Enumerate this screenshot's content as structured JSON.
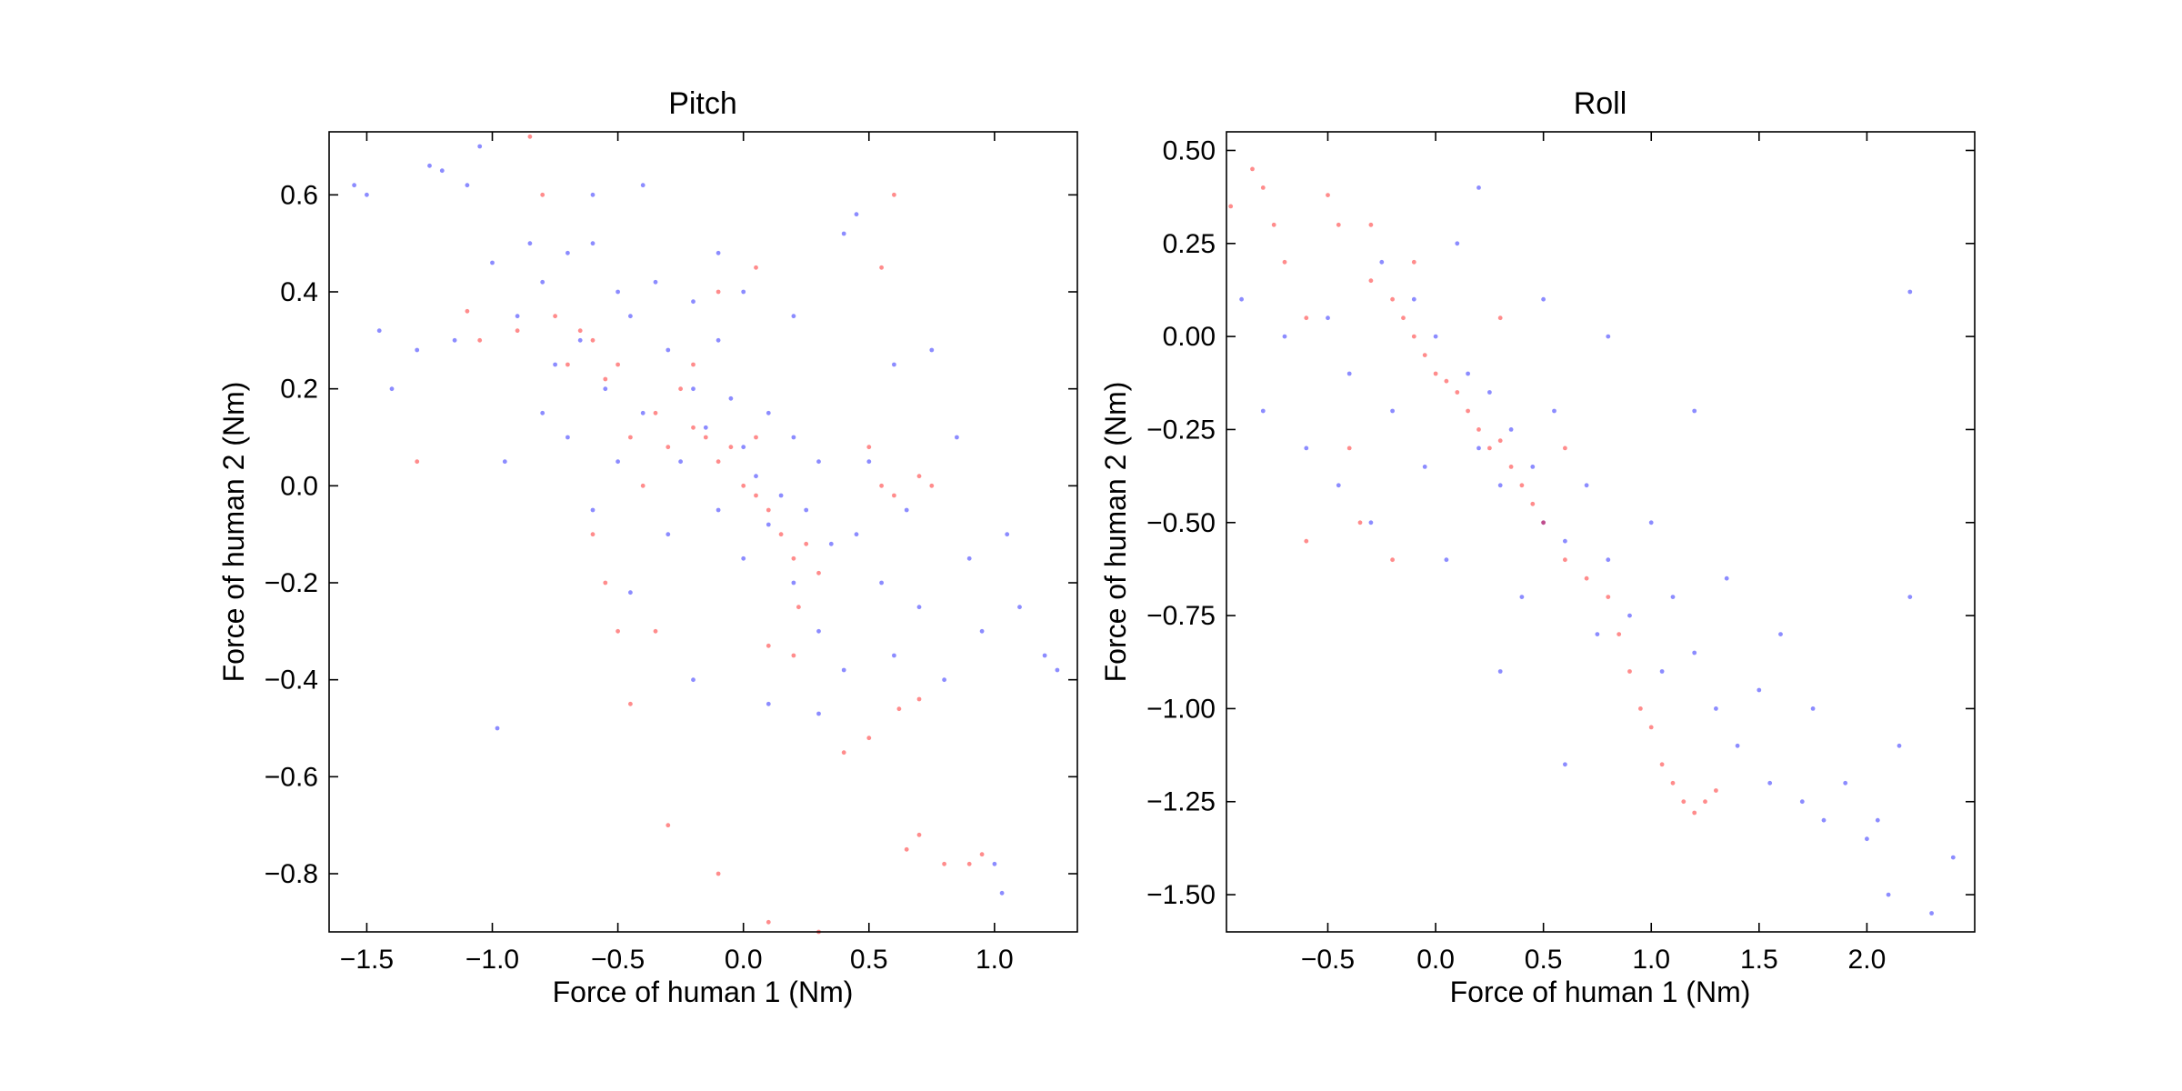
{
  "chart_data": [
    {
      "type": "scatter",
      "title": "Pitch",
      "xlabel": "Force of human 1 (Nm)",
      "ylabel": "Force of human 2 (Nm)",
      "xlim": [
        -1.65,
        1.33
      ],
      "ylim": [
        -0.92,
        0.73
      ],
      "xticks": [
        -1.5,
        -1.0,
        -0.5,
        0.0,
        0.5,
        1.0
      ],
      "xtick_labels": [
        "−1.5",
        "−1.0",
        "−0.5",
        "0.0",
        "0.5",
        "1.0"
      ],
      "yticks": [
        -0.8,
        -0.6,
        -0.4,
        -0.2,
        0.0,
        0.2,
        0.4,
        0.6
      ],
      "ytick_labels": [
        "−0.8",
        "−0.6",
        "−0.4",
        "−0.2",
        "0.0",
        "0.2",
        "0.4",
        "0.6"
      ],
      "grid": false,
      "legend": "none",
      "series": [
        {
          "color": "#0000ff",
          "points": [
            [
              -1.55,
              0.62
            ],
            [
              -1.5,
              0.6
            ],
            [
              -1.45,
              0.32
            ],
            [
              -1.4,
              0.2
            ],
            [
              -1.3,
              0.28
            ],
            [
              -1.25,
              0.66
            ],
            [
              -1.2,
              0.65
            ],
            [
              -1.15,
              0.3
            ],
            [
              -1.1,
              0.62
            ],
            [
              -1.05,
              0.7
            ],
            [
              -1.0,
              0.46
            ],
            [
              -0.98,
              -0.5
            ],
            [
              -0.95,
              0.05
            ],
            [
              -0.9,
              0.35
            ],
            [
              -0.85,
              0.5
            ],
            [
              -0.8,
              0.42
            ],
            [
              -0.75,
              0.25
            ],
            [
              -0.7,
              0.1
            ],
            [
              -0.7,
              0.48
            ],
            [
              -0.65,
              0.3
            ],
            [
              -0.6,
              0.5
            ],
            [
              -0.6,
              -0.05
            ],
            [
              -0.55,
              0.2
            ],
            [
              -0.5,
              0.4
            ],
            [
              -0.5,
              0.05
            ],
            [
              -0.45,
              0.35
            ],
            [
              -0.4,
              0.62
            ],
            [
              -0.4,
              0.15
            ],
            [
              -0.35,
              0.42
            ],
            [
              -0.3,
              0.28
            ],
            [
              -0.3,
              -0.1
            ],
            [
              -0.25,
              0.05
            ],
            [
              -0.2,
              0.38
            ],
            [
              -0.2,
              0.2
            ],
            [
              -0.15,
              0.12
            ],
            [
              -0.1,
              0.3
            ],
            [
              -0.1,
              -0.05
            ],
            [
              -0.05,
              0.18
            ],
            [
              0.0,
              0.08
            ],
            [
              0.0,
              -0.15
            ],
            [
              0.05,
              0.02
            ],
            [
              0.1,
              0.15
            ],
            [
              0.1,
              -0.08
            ],
            [
              0.15,
              -0.02
            ],
            [
              0.2,
              0.1
            ],
            [
              0.2,
              -0.2
            ],
            [
              0.25,
              -0.05
            ],
            [
              0.3,
              0.05
            ],
            [
              0.3,
              -0.3
            ],
            [
              0.35,
              -0.12
            ],
            [
              0.4,
              0.52
            ],
            [
              0.45,
              0.56
            ],
            [
              0.45,
              -0.1
            ],
            [
              0.5,
              0.05
            ],
            [
              0.55,
              -0.2
            ],
            [
              0.6,
              0.25
            ],
            [
              0.65,
              -0.05
            ],
            [
              0.7,
              -0.25
            ],
            [
              0.75,
              0.28
            ],
            [
              0.8,
              -0.4
            ],
            [
              0.85,
              0.1
            ],
            [
              0.9,
              -0.15
            ],
            [
              0.95,
              -0.3
            ],
            [
              1.0,
              -0.78
            ],
            [
              1.03,
              -0.84
            ],
            [
              1.05,
              -0.1
            ],
            [
              1.1,
              -0.25
            ],
            [
              1.2,
              -0.35
            ],
            [
              1.25,
              -0.38
            ],
            [
              0.3,
              -0.47
            ],
            [
              0.1,
              -0.45
            ],
            [
              -0.2,
              -0.4
            ],
            [
              0.4,
              -0.38
            ],
            [
              0.6,
              -0.35
            ],
            [
              -0.45,
              -0.22
            ],
            [
              -0.6,
              0.6
            ],
            [
              -0.8,
              0.15
            ],
            [
              0.0,
              0.4
            ],
            [
              0.2,
              0.35
            ],
            [
              -0.1,
              0.48
            ]
          ]
        },
        {
          "color": "#ff0000",
          "points": [
            [
              -1.3,
              0.05
            ],
            [
              -1.1,
              0.36
            ],
            [
              -1.05,
              0.3
            ],
            [
              -0.85,
              0.72
            ],
            [
              -0.8,
              0.6
            ],
            [
              -0.75,
              0.35
            ],
            [
              -0.7,
              0.25
            ],
            [
              -0.65,
              0.32
            ],
            [
              -0.6,
              0.3
            ],
            [
              -0.55,
              0.22
            ],
            [
              -0.5,
              0.25
            ],
            [
              -0.45,
              0.1
            ],
            [
              -0.4,
              0.0
            ],
            [
              -0.35,
              0.15
            ],
            [
              -0.3,
              0.08
            ],
            [
              -0.25,
              0.2
            ],
            [
              -0.2,
              0.12
            ],
            [
              -0.15,
              0.1
            ],
            [
              -0.1,
              0.05
            ],
            [
              -0.05,
              0.08
            ],
            [
              0.0,
              0.0
            ],
            [
              0.05,
              -0.02
            ],
            [
              0.1,
              -0.05
            ],
            [
              0.15,
              -0.1
            ],
            [
              0.2,
              -0.15
            ],
            [
              0.22,
              -0.25
            ],
            [
              0.25,
              -0.12
            ],
            [
              0.3,
              -0.18
            ],
            [
              0.05,
              0.45
            ],
            [
              -0.1,
              0.4
            ],
            [
              0.5,
              0.08
            ],
            [
              0.55,
              0.0
            ],
            [
              0.6,
              -0.02
            ],
            [
              0.7,
              0.02
            ],
            [
              0.75,
              0.0
            ],
            [
              -0.6,
              -0.1
            ],
            [
              -0.55,
              -0.2
            ],
            [
              -0.5,
              -0.3
            ],
            [
              -0.45,
              -0.45
            ],
            [
              -0.35,
              -0.3
            ],
            [
              0.1,
              -0.33
            ],
            [
              0.2,
              -0.35
            ],
            [
              0.4,
              -0.55
            ],
            [
              0.5,
              -0.52
            ],
            [
              0.62,
              -0.46
            ],
            [
              0.7,
              -0.44
            ],
            [
              0.65,
              -0.75
            ],
            [
              0.7,
              -0.72
            ],
            [
              0.8,
              -0.78
            ],
            [
              0.9,
              -0.78
            ],
            [
              0.95,
              -0.76
            ],
            [
              -0.3,
              -0.7
            ],
            [
              -0.1,
              -0.8
            ],
            [
              0.1,
              -0.9
            ],
            [
              0.3,
              -0.92
            ],
            [
              0.6,
              0.6
            ],
            [
              0.55,
              0.45
            ],
            [
              -0.9,
              0.32
            ],
            [
              -0.2,
              0.25
            ],
            [
              0.05,
              0.1
            ]
          ]
        }
      ]
    },
    {
      "type": "scatter",
      "title": "Roll",
      "xlabel": "Force of human 1 (Nm)",
      "ylabel": "Force of human 2 (Nm)",
      "xlim": [
        -0.97,
        2.5
      ],
      "ylim": [
        -1.6,
        0.55
      ],
      "xticks": [
        -0.5,
        0.0,
        0.5,
        1.0,
        1.5,
        2.0
      ],
      "xtick_labels": [
        "−0.5",
        "0.0",
        "0.5",
        "1.0",
        "1.5",
        "2.0"
      ],
      "yticks": [
        -1.5,
        -1.25,
        -1.0,
        -0.75,
        -0.5,
        -0.25,
        0.0,
        0.25,
        0.5
      ],
      "ytick_labels": [
        "−1.50",
        "−1.25",
        "−1.00",
        "−0.75",
        "−0.50",
        "−0.25",
        "0.00",
        "0.25",
        "0.50"
      ],
      "grid": false,
      "legend": "none",
      "series": [
        {
          "color": "#0000ff",
          "points": [
            [
              -0.9,
              0.1
            ],
            [
              -0.8,
              -0.2
            ],
            [
              -0.7,
              0.0
            ],
            [
              -0.6,
              -0.3
            ],
            [
              -0.5,
              0.05
            ],
            [
              -0.45,
              -0.4
            ],
            [
              -0.4,
              -0.1
            ],
            [
              -0.3,
              -0.5
            ],
            [
              -0.25,
              0.2
            ],
            [
              -0.2,
              -0.2
            ],
            [
              -0.1,
              0.1
            ],
            [
              -0.05,
              -0.35
            ],
            [
              0.0,
              0.0
            ],
            [
              0.05,
              -0.6
            ],
            [
              0.1,
              0.25
            ],
            [
              0.15,
              -0.1
            ],
            [
              0.2,
              -0.3
            ],
            [
              0.25,
              -0.15
            ],
            [
              0.3,
              -0.4
            ],
            [
              0.35,
              -0.25
            ],
            [
              0.4,
              -0.7
            ],
            [
              0.45,
              -0.35
            ],
            [
              0.5,
              -0.5
            ],
            [
              0.55,
              -0.2
            ],
            [
              0.6,
              -0.55
            ],
            [
              0.7,
              -0.4
            ],
            [
              0.75,
              -0.8
            ],
            [
              0.8,
              -0.6
            ],
            [
              0.9,
              -0.75
            ],
            [
              1.0,
              -0.5
            ],
            [
              1.05,
              -0.9
            ],
            [
              1.1,
              -0.7
            ],
            [
              1.2,
              -0.85
            ],
            [
              1.3,
              -1.0
            ],
            [
              1.35,
              -0.65
            ],
            [
              1.4,
              -1.1
            ],
            [
              1.5,
              -0.95
            ],
            [
              1.55,
              -1.2
            ],
            [
              1.6,
              -0.8
            ],
            [
              1.7,
              -1.25
            ],
            [
              1.75,
              -1.0
            ],
            [
              1.8,
              -1.3
            ],
            [
              1.9,
              -1.2
            ],
            [
              2.0,
              -1.35
            ],
            [
              2.05,
              -1.3
            ],
            [
              2.1,
              -1.5
            ],
            [
              2.15,
              -1.1
            ],
            [
              2.2,
              -0.7
            ],
            [
              2.3,
              -1.55
            ],
            [
              2.4,
              -1.4
            ],
            [
              2.2,
              0.12
            ],
            [
              0.2,
              0.4
            ],
            [
              0.5,
              0.1
            ],
            [
              0.8,
              0.0
            ],
            [
              1.2,
              -0.2
            ],
            [
              0.6,
              -1.15
            ],
            [
              0.3,
              -0.9
            ]
          ]
        },
        {
          "color": "#ff0000",
          "points": [
            [
              -0.95,
              0.35
            ],
            [
              -0.85,
              0.45
            ],
            [
              -0.8,
              0.4
            ],
            [
              -0.75,
              0.3
            ],
            [
              -0.7,
              0.2
            ],
            [
              -0.6,
              0.05
            ],
            [
              -0.5,
              0.38
            ],
            [
              -0.45,
              0.3
            ],
            [
              -0.4,
              -0.3
            ],
            [
              -0.35,
              -0.5
            ],
            [
              -0.3,
              0.15
            ],
            [
              -0.2,
              0.1
            ],
            [
              -0.15,
              0.05
            ],
            [
              -0.1,
              0.0
            ],
            [
              -0.05,
              -0.05
            ],
            [
              0.0,
              -0.1
            ],
            [
              0.05,
              -0.12
            ],
            [
              0.1,
              -0.15
            ],
            [
              0.15,
              -0.2
            ],
            [
              0.2,
              -0.25
            ],
            [
              0.25,
              -0.3
            ],
            [
              0.3,
              -0.28
            ],
            [
              0.35,
              -0.35
            ],
            [
              0.4,
              -0.4
            ],
            [
              0.45,
              -0.45
            ],
            [
              0.5,
              -0.5
            ],
            [
              0.6,
              -0.6
            ],
            [
              0.7,
              -0.65
            ],
            [
              0.8,
              -0.7
            ],
            [
              0.85,
              -0.8
            ],
            [
              0.9,
              -0.9
            ],
            [
              0.95,
              -1.0
            ],
            [
              1.0,
              -1.05
            ],
            [
              1.05,
              -1.15
            ],
            [
              1.1,
              -1.2
            ],
            [
              1.15,
              -1.25
            ],
            [
              1.2,
              -1.28
            ],
            [
              1.25,
              -1.25
            ],
            [
              1.3,
              -1.22
            ],
            [
              -0.2,
              -0.6
            ],
            [
              -0.6,
              -0.55
            ],
            [
              -0.3,
              0.3
            ],
            [
              -0.1,
              0.2
            ],
            [
              0.3,
              0.05
            ],
            [
              0.6,
              -0.3
            ]
          ]
        }
      ]
    }
  ]
}
